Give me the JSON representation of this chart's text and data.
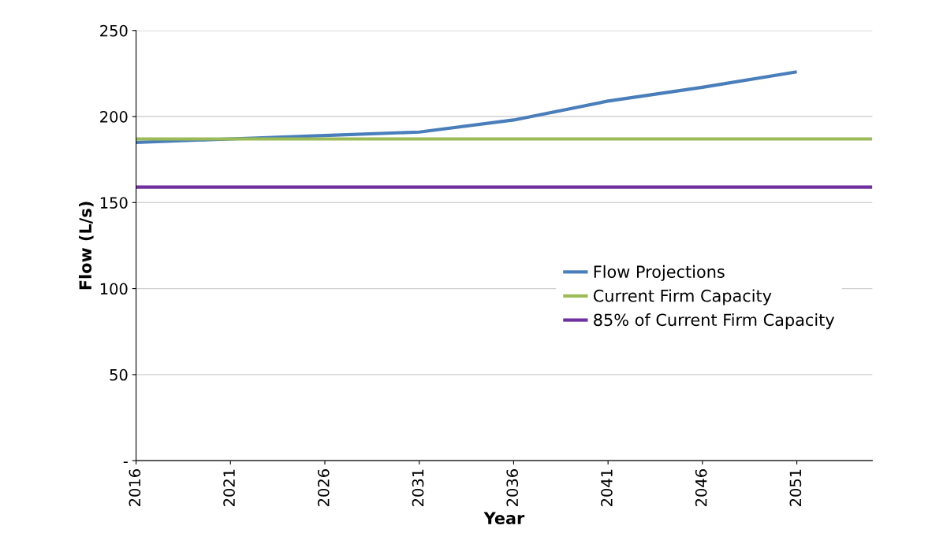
{
  "chart_data": {
    "type": "line",
    "xlabel": "Year",
    "ylabel": "Flow (L/s)",
    "xlim": [
      2016,
      2055
    ],
    "xticks": [
      2016,
      2021,
      2026,
      2031,
      2036,
      2041,
      2046,
      2051
    ],
    "ylim": [
      0,
      250
    ],
    "yticks": [
      {
        "value": 0,
        "label": "-"
      },
      50,
      100,
      150,
      200,
      250
    ],
    "grid": "y",
    "legend": "right",
    "series": [
      {
        "name": "Flow Projections",
        "color": "#4a7ebb",
        "x": [
          2016,
          2021,
          2026,
          2031,
          2036,
          2041,
          2046,
          2051
        ],
        "values": [
          185,
          187,
          189,
          191,
          198,
          209,
          217,
          226
        ]
      },
      {
        "name": "Current Firm Capacity",
        "color": "#9bbb59",
        "x": [
          2016,
          2055
        ],
        "values": [
          187,
          187
        ]
      },
      {
        "name": "85% of Current Firm Capacity",
        "color": "#7030a0",
        "x": [
          2016,
          2055
        ],
        "values": [
          159,
          159
        ]
      }
    ]
  }
}
